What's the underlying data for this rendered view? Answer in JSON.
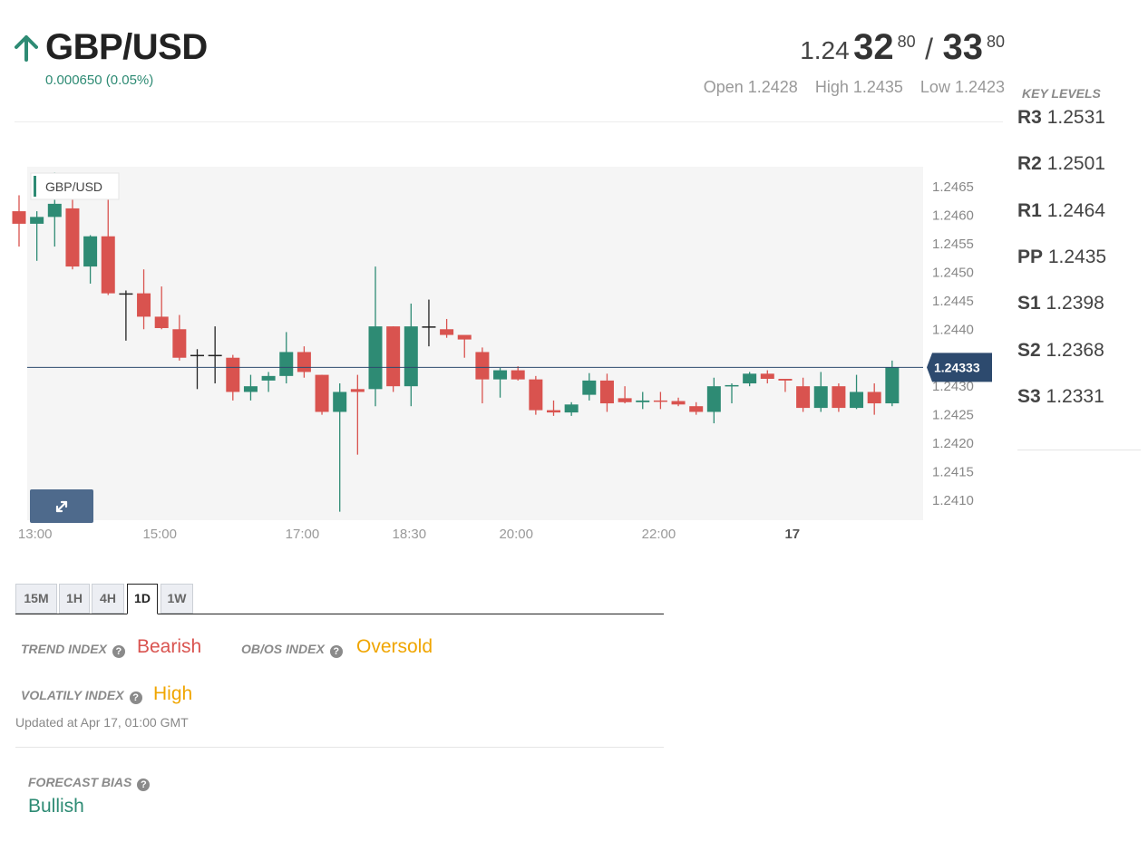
{
  "header": {
    "pair": "GBP/USD",
    "change": "0.000650 (0.05%)",
    "direction": "up"
  },
  "quote": {
    "bid_prefix": "1.24",
    "bid_big": "32",
    "bid_pip": "80",
    "separator": "/",
    "ask_big": "33",
    "ask_pip": "80",
    "open": "Open 1.2428",
    "high": "High 1.2435",
    "low": "Low 1.2423"
  },
  "key_levels": {
    "title": "KEY LEVELS",
    "items": [
      {
        "label": "R3",
        "value": "1.2531"
      },
      {
        "label": "R2",
        "value": "1.2501"
      },
      {
        "label": "R1",
        "value": "1.2464"
      },
      {
        "label": "PP",
        "value": "1.2435"
      },
      {
        "label": "S1",
        "value": "1.2398"
      },
      {
        "label": "S2",
        "value": "1.2368"
      },
      {
        "label": "S3",
        "value": "1.2331"
      }
    ]
  },
  "timeframes": {
    "items": [
      "15M",
      "1H",
      "4H",
      "1D",
      "1W"
    ],
    "active": "1D"
  },
  "indicators": {
    "trend_label": "TREND INDEX",
    "trend_value": "Bearish",
    "obos_label": "OB/OS INDEX",
    "obos_value": "Oversold",
    "volatility_label": "VOLATILY INDEX",
    "volatility_value": "High",
    "updated": "Updated at Apr 17, 01:00 GMT",
    "help_glyph": "?"
  },
  "forecast": {
    "label": "FORECAST BIAS",
    "value": "Bullish"
  },
  "colors": {
    "up": "#2e8b74",
    "down": "#d9534f",
    "neutral": "#222222",
    "bearish": "#d9534f",
    "warning": "#f0a500",
    "bullish": "#2e8b74",
    "price_tag": "#2d4a6e",
    "expand_button": "#4e6a8c"
  },
  "chart_data": {
    "type": "candlestick",
    "legend": "GBP/USD",
    "last_price": 1.24333,
    "last_price_label": "1.24333",
    "ylim": [
      1.24065,
      1.24685
    ],
    "yticks": [
      "1.2465",
      "1.2460",
      "1.2455",
      "1.2450",
      "1.2445",
      "1.2440",
      "1.2435",
      "1.2430",
      "1.2425",
      "1.2420",
      "1.2415",
      "1.2410"
    ],
    "xticks": [
      {
        "label": "13:00",
        "slot": 0.9,
        "bold": false
      },
      {
        "label": "15:00",
        "slot": 7.9,
        "bold": false
      },
      {
        "label": "17:00",
        "slot": 15.9,
        "bold": false
      },
      {
        "label": "18:30",
        "slot": 21.9,
        "bold": false
      },
      {
        "label": "20:00",
        "slot": 27.9,
        "bold": false
      },
      {
        "label": "22:00",
        "slot": 35.9,
        "bold": false
      },
      {
        "label": "17",
        "slot": 43.4,
        "bold": true
      }
    ],
    "candles": [
      {
        "o": 1.24607,
        "h": 1.24635,
        "l": 1.24545,
        "c": 1.24585
      },
      {
        "o": 1.24585,
        "h": 1.24607,
        "l": 1.2452,
        "c": 1.24597
      },
      {
        "o": 1.24597,
        "h": 1.24675,
        "l": 1.24545,
        "c": 1.2462
      },
      {
        "o": 1.24612,
        "h": 1.2463,
        "l": 1.24505,
        "c": 1.2451
      },
      {
        "o": 1.2451,
        "h": 1.24565,
        "l": 1.2448,
        "c": 1.24563
      },
      {
        "o": 1.24563,
        "h": 1.24635,
        "l": 1.2446,
        "c": 1.24463
      },
      {
        "o": 1.24463,
        "h": 1.24468,
        "l": 1.2438,
        "c": 1.24463
      },
      {
        "o": 1.24463,
        "h": 1.24505,
        "l": 1.244,
        "c": 1.24422
      },
      {
        "o": 1.24422,
        "h": 1.24475,
        "l": 1.244,
        "c": 1.24402
      },
      {
        "o": 1.244,
        "h": 1.24425,
        "l": 1.24345,
        "c": 1.2435
      },
      {
        "o": 1.24355,
        "h": 1.24365,
        "l": 1.24295,
        "c": 1.24355
      },
      {
        "o": 1.24355,
        "h": 1.24405,
        "l": 1.24305,
        "c": 1.24355
      },
      {
        "o": 1.2435,
        "h": 1.24355,
        "l": 1.24275,
        "c": 1.2429
      },
      {
        "o": 1.2429,
        "h": 1.2432,
        "l": 1.24275,
        "c": 1.243
      },
      {
        "o": 1.2431,
        "h": 1.24325,
        "l": 1.2429,
        "c": 1.24318
      },
      {
        "o": 1.24318,
        "h": 1.24395,
        "l": 1.24305,
        "c": 1.2436
      },
      {
        "o": 1.2436,
        "h": 1.2437,
        "l": 1.24315,
        "c": 1.24325
      },
      {
        "o": 1.2432,
        "h": 1.2432,
        "l": 1.2425,
        "c": 1.24255
      },
      {
        "o": 1.24255,
        "h": 1.24305,
        "l": 1.2408,
        "c": 1.2429
      },
      {
        "o": 1.24295,
        "h": 1.2432,
        "l": 1.2418,
        "c": 1.2429
      },
      {
        "o": 1.24295,
        "h": 1.2451,
        "l": 1.24265,
        "c": 1.24405
      },
      {
        "o": 1.24405,
        "h": 1.24405,
        "l": 1.2429,
        "c": 1.243
      },
      {
        "o": 1.243,
        "h": 1.24445,
        "l": 1.24265,
        "c": 1.24405
      },
      {
        "o": 1.24405,
        "h": 1.24452,
        "l": 1.2437,
        "c": 1.24405
      },
      {
        "o": 1.244,
        "h": 1.24418,
        "l": 1.24385,
        "c": 1.2439
      },
      {
        "o": 1.2439,
        "h": 1.24388,
        "l": 1.2435,
        "c": 1.24382
      },
      {
        "o": 1.2436,
        "h": 1.24368,
        "l": 1.2427,
        "c": 1.24312
      },
      {
        "o": 1.24312,
        "h": 1.24332,
        "l": 1.2428,
        "c": 1.24328
      },
      {
        "o": 1.24328,
        "h": 1.24335,
        "l": 1.2431,
        "c": 1.24312
      },
      {
        "o": 1.24312,
        "h": 1.24318,
        "l": 1.2425,
        "c": 1.24258
      },
      {
        "o": 1.24258,
        "h": 1.24275,
        "l": 1.24248,
        "c": 1.24254
      },
      {
        "o": 1.24254,
        "h": 1.24272,
        "l": 1.24248,
        "c": 1.24268
      },
      {
        "o": 1.24285,
        "h": 1.24323,
        "l": 1.24275,
        "c": 1.2431
      },
      {
        "o": 1.2431,
        "h": 1.24322,
        "l": 1.24255,
        "c": 1.2427
      },
      {
        "o": 1.24279,
        "h": 1.243,
        "l": 1.2427,
        "c": 1.24272
      },
      {
        "o": 1.24272,
        "h": 1.2429,
        "l": 1.2426,
        "c": 1.24275
      },
      {
        "o": 1.24275,
        "h": 1.2429,
        "l": 1.2426,
        "c": 1.24274
      },
      {
        "o": 1.24274,
        "h": 1.2428,
        "l": 1.24265,
        "c": 1.24268
      },
      {
        "o": 1.24265,
        "h": 1.24272,
        "l": 1.2425,
        "c": 1.24255
      },
      {
        "o": 1.24255,
        "h": 1.24315,
        "l": 1.24235,
        "c": 1.243
      },
      {
        "o": 1.243,
        "h": 1.24305,
        "l": 1.2427,
        "c": 1.24302
      },
      {
        "o": 1.24305,
        "h": 1.24325,
        "l": 1.243,
        "c": 1.24322
      },
      {
        "o": 1.24322,
        "h": 1.24328,
        "l": 1.24305,
        "c": 1.24313
      },
      {
        "o": 1.24313,
        "h": 1.24312,
        "l": 1.2429,
        "c": 1.2431
      },
      {
        "o": 1.243,
        "h": 1.24315,
        "l": 1.24255,
        "c": 1.24262
      },
      {
        "o": 1.24262,
        "h": 1.24325,
        "l": 1.24255,
        "c": 1.243
      },
      {
        "o": 1.243,
        "h": 1.24305,
        "l": 1.24255,
        "c": 1.24262
      },
      {
        "o": 1.24262,
        "h": 1.2432,
        "l": 1.2426,
        "c": 1.2429
      },
      {
        "o": 1.2429,
        "h": 1.24305,
        "l": 1.2425,
        "c": 1.2427
      },
      {
        "o": 1.2427,
        "h": 1.24345,
        "l": 1.24265,
        "c": 1.24333
      }
    ]
  }
}
